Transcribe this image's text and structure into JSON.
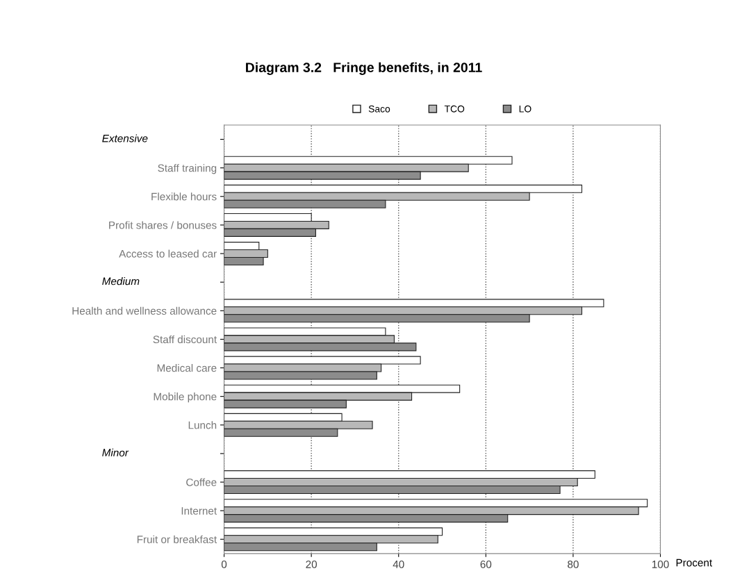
{
  "chart_data": {
    "type": "bar",
    "orientation": "horizontal",
    "title": "Diagram 3.2   Fringe benefits, in 2011",
    "xlabel": "Procent",
    "categories": [
      null,
      "Staff training",
      "Flexible hours",
      "Profit shares / bonuses",
      "Access to leased car",
      null,
      "Health and wellness allowance",
      "Staff discount",
      "Medical care",
      "Mobile phone",
      "Lunch",
      null,
      "Coffee",
      "Internet",
      "Fruit or breakfast"
    ],
    "annotations": [
      "Extensive",
      "Medium",
      "Minor"
    ],
    "series": [
      {
        "name": "Saco",
        "color": "#ffffff",
        "values": [
          null,
          66,
          82,
          20,
          8,
          null,
          87,
          37,
          45,
          54,
          27,
          null,
          85,
          97,
          50
        ]
      },
      {
        "name": "TCO",
        "color": "#b8b8b8",
        "values": [
          null,
          56,
          70,
          24,
          10,
          null,
          82,
          39,
          36,
          43,
          34,
          null,
          81,
          95,
          49
        ]
      },
      {
        "name": "LO",
        "color": "#8c8c8c",
        "values": [
          null,
          45,
          37,
          21,
          9,
          null,
          70,
          44,
          35,
          28,
          26,
          null,
          77,
          65,
          35
        ]
      }
    ],
    "xlim": [
      0,
      100
    ],
    "xticks": [
      0,
      20,
      40,
      60,
      80,
      100
    ],
    "grid": "x",
    "legend": "top"
  }
}
